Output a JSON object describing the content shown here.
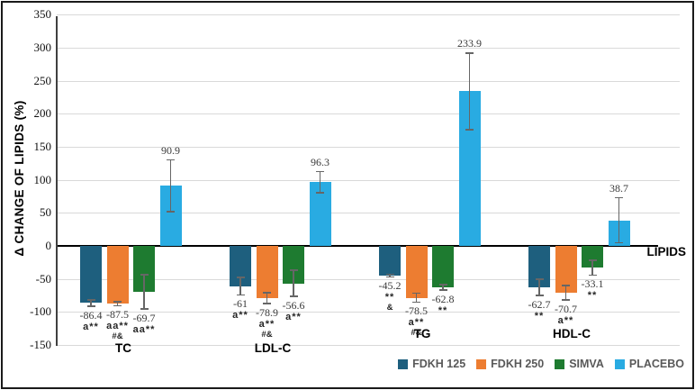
{
  "chart_data": {
    "type": "bar",
    "title": "",
    "ylabel": "Δ CHANGE OF LIPIDS (%)",
    "xlabel": "LIPIDS",
    "ylim": [
      -150,
      350
    ],
    "yticks": [
      350,
      300,
      250,
      200,
      150,
      100,
      50,
      0,
      -50,
      -100,
      -150
    ],
    "grid": true,
    "legend_position": "bottom-right",
    "categories": [
      "TC",
      "LDL-C",
      "TG",
      "HDL-C"
    ],
    "series": [
      {
        "name": "FDKH 125",
        "color": "#1E5F7E",
        "values": [
          -86.4,
          -61,
          -45.2,
          -62.7
        ],
        "labels": [
          "-86.4",
          "-61",
          "-45.2",
          "-62.7"
        ],
        "errors": [
          6,
          14,
          3,
          13
        ],
        "sig": [
          [
            "a**"
          ],
          [
            "a**"
          ],
          [
            "**",
            "&"
          ],
          [
            "**"
          ]
        ]
      },
      {
        "name": "FDKH 250",
        "color": "#ED7D31",
        "values": [
          -87.5,
          -78.9,
          -78.5,
          -70.7
        ],
        "labels": [
          "-87.5",
          "-78.9",
          "-78.5",
          "-70.7"
        ],
        "errors": [
          4,
          9,
          8,
          12
        ],
        "sig": [
          [
            "aa**",
            "#&"
          ],
          [
            "a**",
            "#&"
          ],
          [
            "a**",
            "#&"
          ],
          [
            "a**"
          ]
        ]
      },
      {
        "name": "SIMVA",
        "color": "#1E7B30",
        "values": [
          -69.7,
          -56.6,
          -62.8,
          -33.1
        ],
        "labels": [
          "-69.7",
          "-56.6",
          "-62.8",
          "-33.1"
        ],
        "errors": [
          27,
          21,
          5,
          12
        ],
        "sig": [
          [
            "aa**"
          ],
          [
            "a**"
          ],
          [
            "**"
          ],
          [
            "**"
          ]
        ]
      },
      {
        "name": "PLACEBO",
        "color": "#29ABE2",
        "values": [
          90.9,
          96.3,
          233.9,
          38.7
        ],
        "labels": [
          "90.9",
          "96.3",
          "233.9",
          "38.7"
        ],
        "errors": [
          40,
          17,
          59,
          35
        ],
        "sig": [
          [],
          [],
          [],
          []
        ]
      }
    ]
  }
}
